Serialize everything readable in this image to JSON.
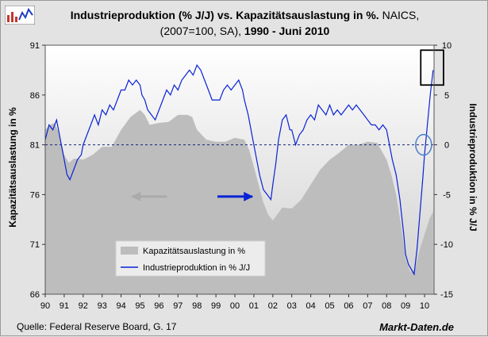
{
  "title": {
    "part1": "Industrieproduktion (% J/J) vs. Kapazitätsauslastung in %.",
    "part2": " NAICS,",
    "part3": "(2007=100, SA),",
    "part4": " 1990 - Juni 2010"
  },
  "source": "Quelle: Federal Reserve Board, G. 17",
  "brand": "Markt-Daten.de",
  "colors": {
    "area": "#bdbdbd",
    "line": "#0a22d6",
    "plot_bg_top": "#ffffff",
    "plot_bg_bottom": "#d0d0d0",
    "annotation_circle": "#4a7ec8"
  },
  "chart_data": {
    "type": "line",
    "xlabel": "",
    "x_ticks": [
      "90",
      "91",
      "92",
      "93",
      "94",
      "95",
      "96",
      "97",
      "98",
      "99",
      "00",
      "01",
      "02",
      "03",
      "04",
      "05",
      "06",
      "07",
      "08",
      "09",
      "10"
    ],
    "x_range": [
      1990,
      2010.5
    ],
    "y_left": {
      "label": "Kapazitätsauslastung in %",
      "range": [
        66,
        91
      ],
      "ticks": [
        66,
        71,
        76,
        81,
        86,
        91
      ]
    },
    "y_right": {
      "label": "Industrieproduktion in % J/J",
      "range": [
        -15,
        10
      ],
      "ticks": [
        -15,
        -10,
        -5,
        0,
        5,
        10
      ]
    },
    "reference_line": {
      "axis": "right",
      "value": 0,
      "style": "dashed"
    },
    "grid": false,
    "legend": {
      "position": "bottom-left"
    },
    "series": [
      {
        "name": "Kapazitätsauslastung in %",
        "type": "area",
        "axis": "left",
        "x": [
          1990.0,
          1990.25,
          1990.5,
          1990.75,
          1991.0,
          1991.25,
          1991.5,
          1991.75,
          1992.0,
          1992.5,
          1993.0,
          1993.5,
          1994.0,
          1994.5,
          1995.0,
          1995.25,
          1995.5,
          1996.0,
          1996.5,
          1997.0,
          1997.5,
          1997.75,
          1998.0,
          1998.5,
          1999.0,
          1999.5,
          2000.0,
          2000.5,
          2000.75,
          2001.0,
          2001.25,
          2001.5,
          2001.75,
          2002.0,
          2002.5,
          2003.0,
          2003.5,
          2004.0,
          2004.5,
          2005.0,
          2005.5,
          2006.0,
          2006.5,
          2007.0,
          2007.5,
          2008.0,
          2008.25,
          2008.5,
          2008.75,
          2009.0,
          2009.25,
          2009.5,
          2009.75,
          2010.0,
          2010.25,
          2010.45
        ],
        "values": [
          82.5,
          83.0,
          83.2,
          82.0,
          80.0,
          79.2,
          79.6,
          79.6,
          79.5,
          80.0,
          80.8,
          80.8,
          82.5,
          83.8,
          84.5,
          84.0,
          83.0,
          83.2,
          83.3,
          84.0,
          84.0,
          83.8,
          82.5,
          81.5,
          81.3,
          81.3,
          81.7,
          81.5,
          80.5,
          78.8,
          77.0,
          75.2,
          74.0,
          73.4,
          74.7,
          74.6,
          75.5,
          77.0,
          78.5,
          79.5,
          80.2,
          81.0,
          81.0,
          81.3,
          81.2,
          79.5,
          78.0,
          76.0,
          73.0,
          69.5,
          68.2,
          68.5,
          70.5,
          72.0,
          73.5,
          74.3
        ]
      },
      {
        "name": "Industrieproduktion in % J/J",
        "type": "line",
        "axis": "right",
        "x": [
          1990.0,
          1990.2,
          1990.4,
          1990.6,
          1990.75,
          1990.9,
          1991.0,
          1991.15,
          1991.3,
          1991.5,
          1991.7,
          1991.9,
          1992.0,
          1992.2,
          1992.4,
          1992.6,
          1992.8,
          1993.0,
          1993.2,
          1993.4,
          1993.6,
          1993.8,
          1994.0,
          1994.2,
          1994.4,
          1994.6,
          1994.8,
          1995.0,
          1995.1,
          1995.25,
          1995.4,
          1995.6,
          1995.8,
          1996.0,
          1996.2,
          1996.4,
          1996.6,
          1996.8,
          1997.0,
          1997.2,
          1997.4,
          1997.6,
          1997.8,
          1998.0,
          1998.2,
          1998.4,
          1998.6,
          1998.8,
          1999.0,
          1999.2,
          1999.4,
          1999.6,
          1999.8,
          2000.0,
          2000.2,
          2000.4,
          2000.5,
          2000.7,
          2000.9,
          2001.1,
          2001.3,
          2001.5,
          2001.7,
          2001.9,
          2002.0,
          2002.15,
          2002.3,
          2002.5,
          2002.7,
          2002.9,
          2003.0,
          2003.2,
          2003.4,
          2003.6,
          2003.8,
          2004.0,
          2004.2,
          2004.4,
          2004.6,
          2004.8,
          2005.0,
          2005.2,
          2005.4,
          2005.6,
          2005.8,
          2006.0,
          2006.2,
          2006.4,
          2006.6,
          2006.8,
          2007.0,
          2007.2,
          2007.4,
          2007.6,
          2007.8,
          2008.0,
          2008.15,
          2008.3,
          2008.5,
          2008.7,
          2008.9,
          2009.0,
          2009.15,
          2009.3,
          2009.45,
          2009.6,
          2009.75,
          2009.9,
          2010.0,
          2010.15,
          2010.3,
          2010.45
        ],
        "values": [
          0.5,
          2.0,
          1.5,
          2.5,
          1.0,
          -0.5,
          -1.5,
          -3.0,
          -3.5,
          -2.5,
          -1.5,
          -1.0,
          0.0,
          1.0,
          2.0,
          3.0,
          2.0,
          3.5,
          3.0,
          4.0,
          3.5,
          4.5,
          5.5,
          5.5,
          6.5,
          6.0,
          6.5,
          6.0,
          5.0,
          4.5,
          3.5,
          3.0,
          2.5,
          3.5,
          4.5,
          5.5,
          5.0,
          6.0,
          5.5,
          6.5,
          7.0,
          7.5,
          7.0,
          8.0,
          7.5,
          6.5,
          5.5,
          4.5,
          4.5,
          4.5,
          5.5,
          6.0,
          5.5,
          6.0,
          6.5,
          5.5,
          4.5,
          3.0,
          1.0,
          -1.0,
          -3.0,
          -4.5,
          -5.0,
          -5.5,
          -4.0,
          -2.0,
          0.5,
          2.5,
          3.0,
          1.5,
          1.5,
          0.0,
          1.0,
          1.5,
          2.5,
          3.0,
          2.5,
          4.0,
          3.5,
          3.0,
          4.0,
          3.0,
          3.5,
          3.0,
          3.5,
          4.0,
          3.5,
          4.0,
          3.5,
          3.0,
          2.5,
          2.0,
          2.0,
          1.5,
          2.0,
          1.5,
          0.0,
          -1.5,
          -3.0,
          -5.5,
          -9.0,
          -11.0,
          -12.0,
          -12.5,
          -13.0,
          -10.5,
          -7.0,
          -3.5,
          -1.0,
          2.0,
          5.0,
          7.5
        ]
      }
    ],
    "annotations": [
      {
        "type": "arrow",
        "direction": "left",
        "color": "#aaaaaa",
        "x": 1995.5,
        "y_left": 75.8
      },
      {
        "type": "arrow",
        "direction": "right",
        "color": "#0a22d6",
        "x": 2000.0,
        "y_left": 75.8
      },
      {
        "type": "box",
        "x": [
          2009.8,
          2011.0
        ],
        "y_right": [
          6.0,
          9.5
        ]
      },
      {
        "type": "circle",
        "x": 2009.95,
        "y_right": 0.0
      }
    ]
  }
}
